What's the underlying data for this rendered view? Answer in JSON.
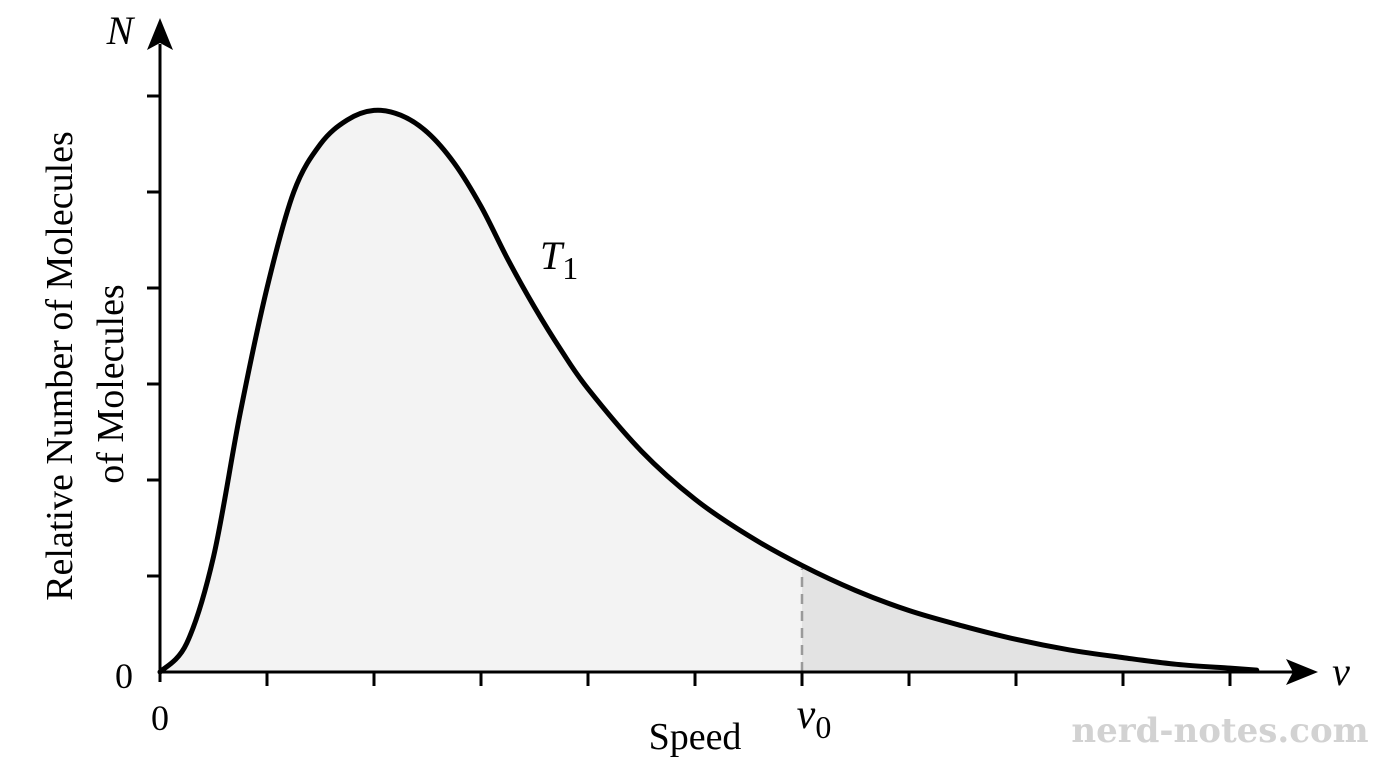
{
  "chart_data": {
    "type": "area",
    "title": "",
    "xlabel": "Speed",
    "ylabel_lines": [
      "Relative Number of Molecules",
      "of Molecules"
    ],
    "x_axis_symbol": "v",
    "y_axis_symbol": "N",
    "x_origin_label": "0",
    "y_origin_label": "0",
    "xlim": [
      0,
      10
    ],
    "ylim": [
      0,
      6
    ],
    "x_tick_count": 10,
    "y_tick_count": 6,
    "series": [
      {
        "name": "T₁",
        "x": [
          0,
          0.25,
          0.5,
          0.75,
          1,
          1.25,
          1.5,
          1.75,
          2,
          2.25,
          2.5,
          2.75,
          3,
          3.25,
          3.5,
          3.75,
          4,
          4.5,
          5,
          5.5,
          6,
          6.5,
          7,
          7.5,
          8,
          8.5,
          9,
          9.5,
          10,
          10.25
        ],
        "y": [
          0,
          0.3,
          1.2,
          2.7,
          4.0,
          5.0,
          5.5,
          5.75,
          5.85,
          5.8,
          5.62,
          5.3,
          4.85,
          4.3,
          3.8,
          3.35,
          2.95,
          2.3,
          1.8,
          1.42,
          1.11,
          0.85,
          0.64,
          0.48,
          0.34,
          0.23,
          0.15,
          0.08,
          0.04,
          0.02
        ]
      }
    ],
    "series_label": {
      "text": "T",
      "subscript": "1"
    },
    "marker": {
      "label": "v",
      "subscript": "0",
      "x": 6
    },
    "shading": {
      "main": "#f3f3f3",
      "tail": "#e3e3e3"
    },
    "grid": false,
    "legend": "none"
  },
  "watermark": "nerd-notes.com",
  "colors": {
    "axis": "#000000",
    "curve": "#000000",
    "marker_line": "#9a9a9a",
    "watermark": "#d2d2d2"
  }
}
